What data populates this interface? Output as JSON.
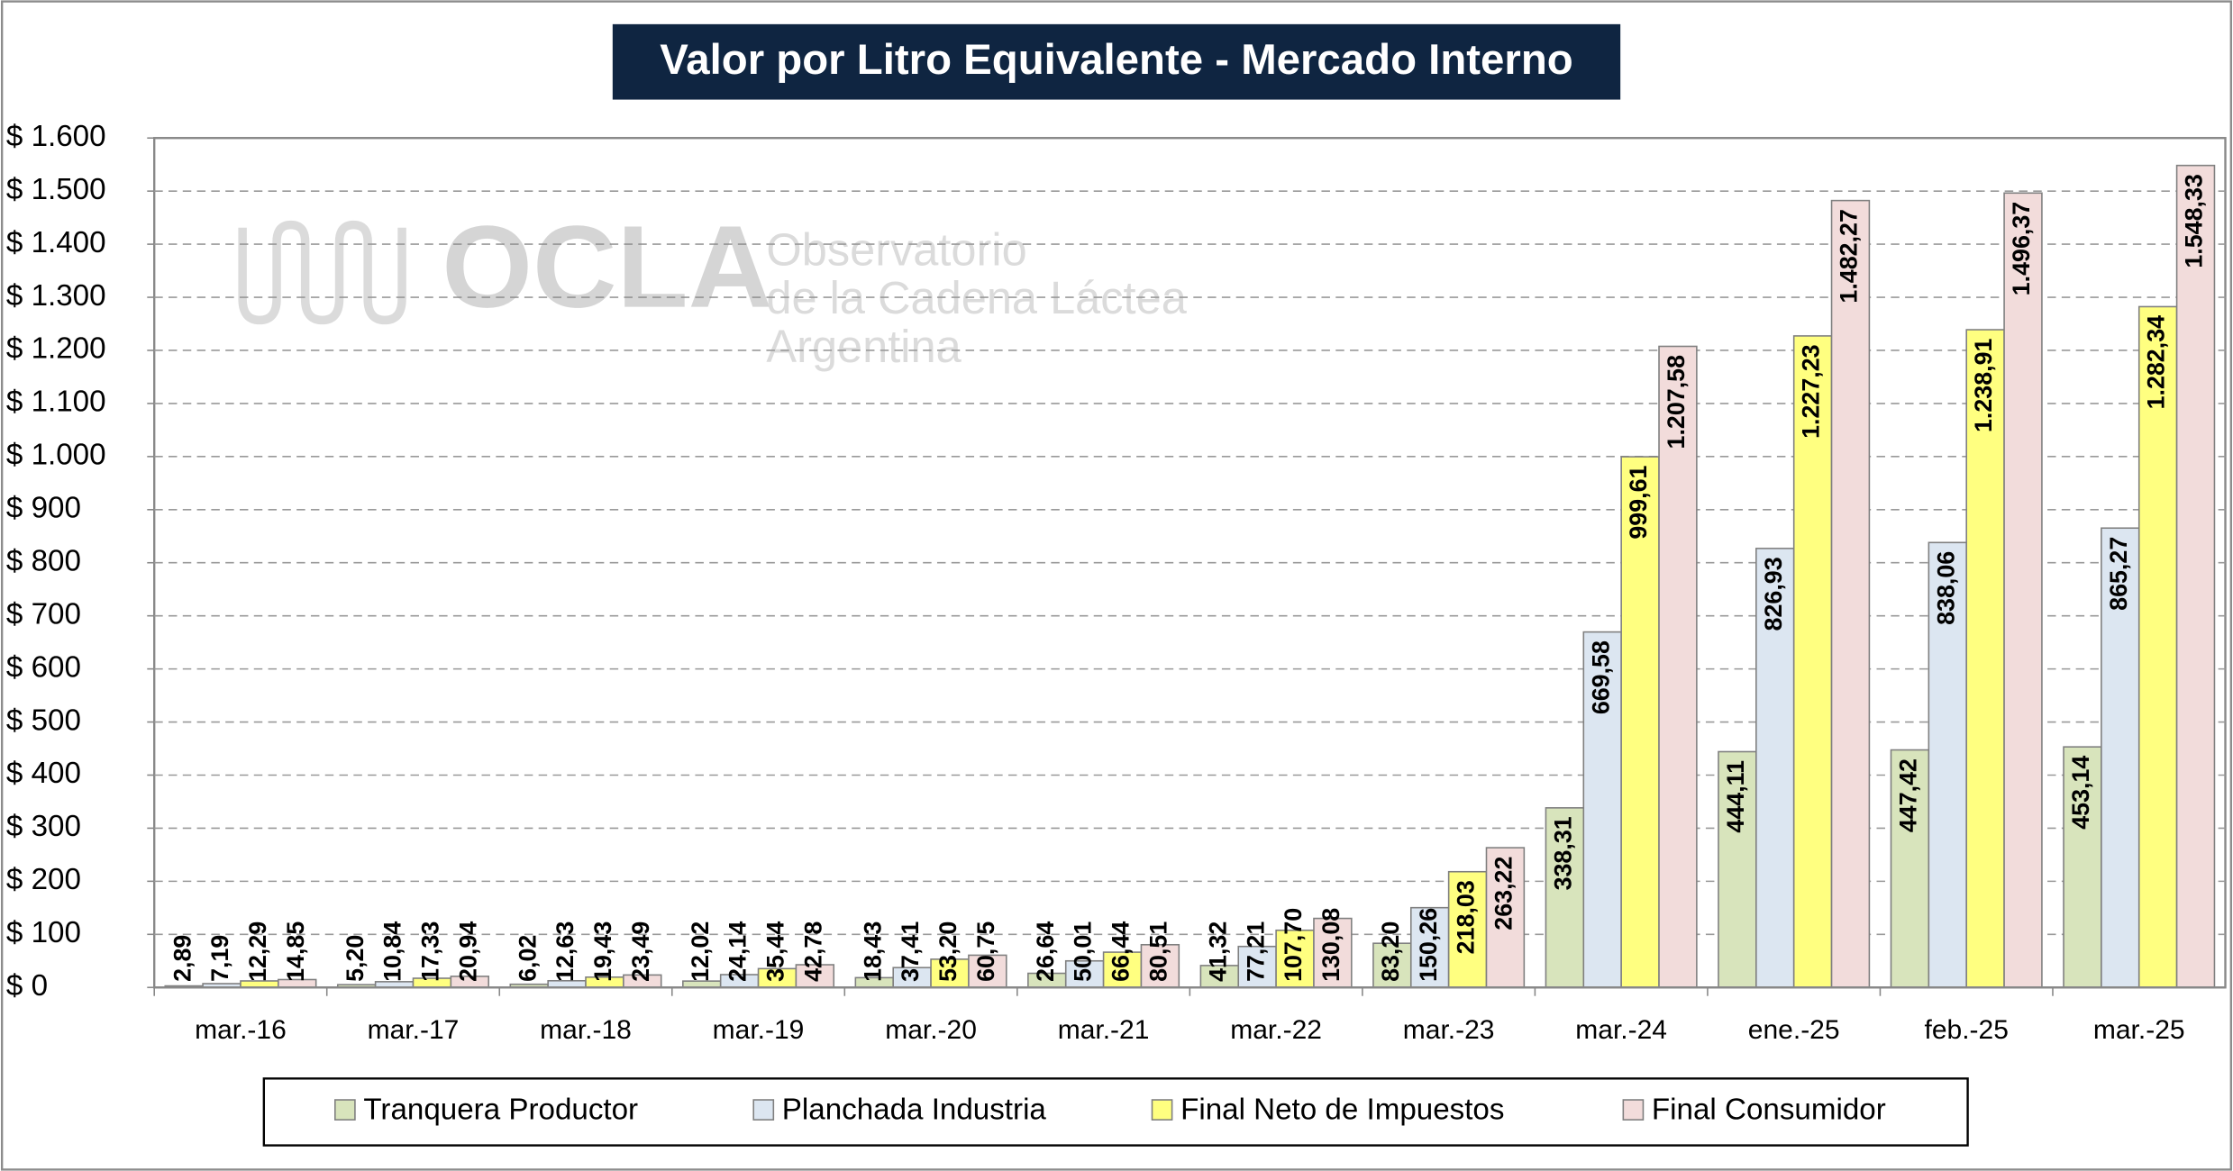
{
  "chart_data": {
    "type": "bar",
    "title": "Valor por Litro Equivalente - Mercado Interno",
    "watermark": {
      "logo": "OCLA",
      "lines": [
        "Observatorio",
        "de la Cadena Láctea",
        "Argentina"
      ]
    },
    "categories": [
      "mar.-16",
      "mar.-17",
      "mar.-18",
      "mar.-19",
      "mar.-20",
      "mar.-21",
      "mar.-22",
      "mar.-23",
      "mar.-24",
      "ene.-25",
      "feb.-25",
      "mar.-25"
    ],
    "series": [
      {
        "name": "Tranquera Productor",
        "color": "#d8e4bc",
        "values": [
          2.89,
          5.2,
          6.02,
          12.02,
          18.43,
          26.64,
          41.32,
          83.2,
          338.31,
          444.11,
          447.42,
          453.14
        ],
        "value_labels": [
          "2,89",
          "5,20",
          "6,02",
          "12,02",
          "18,43",
          "26,64",
          "41,32",
          "83,20",
          "338,31",
          "444,11",
          "447,42",
          "453,14"
        ]
      },
      {
        "name": "Planchada Industria",
        "color": "#dce6f1",
        "values": [
          7.19,
          10.84,
          12.63,
          24.14,
          37.41,
          50.01,
          77.21,
          150.26,
          669.58,
          826.93,
          838.06,
          865.27
        ],
        "value_labels": [
          "7,19",
          "10,84",
          "12,63",
          "24,14",
          "37,41",
          "50,01",
          "77,21",
          "150,26",
          "669,58",
          "826,93",
          "838,06",
          "865,27"
        ]
      },
      {
        "name": "Final Neto de Impuestos",
        "color": "#ffff80",
        "values": [
          12.29,
          17.33,
          19.43,
          35.44,
          53.2,
          66.44,
          107.7,
          218.03,
          999.61,
          1227.23,
          1238.91,
          1282.34
        ],
        "value_labels": [
          "12,29",
          "17,33",
          "19,43",
          "35,44",
          "53,20",
          "66,44",
          "107,70",
          "218,03",
          "999,61",
          "1.227,23",
          "1.238,91",
          "1.282,34"
        ]
      },
      {
        "name": "Final Consumidor",
        "color": "#f2dcdb",
        "values": [
          14.85,
          20.94,
          23.49,
          42.78,
          60.75,
          80.51,
          130.08,
          263.22,
          1207.58,
          1482.27,
          1496.37,
          1548.33
        ],
        "value_labels": [
          "14,85",
          "20,94",
          "23,49",
          "42,78",
          "60,75",
          "80,51",
          "130,08",
          "263,22",
          "1.207,58",
          "1.482,27",
          "1.496,37",
          "1.548,33"
        ]
      }
    ],
    "ylim": [
      0,
      1600
    ],
    "yticks": [
      {
        "value": 0,
        "label": "$ 0"
      },
      {
        "value": 100,
        "label": "$ 100"
      },
      {
        "value": 200,
        "label": "$ 200"
      },
      {
        "value": 300,
        "label": "$ 300"
      },
      {
        "value": 400,
        "label": "$ 400"
      },
      {
        "value": 500,
        "label": "$ 500"
      },
      {
        "value": 600,
        "label": "$ 600"
      },
      {
        "value": 700,
        "label": "$ 700"
      },
      {
        "value": 800,
        "label": "$ 800"
      },
      {
        "value": 900,
        "label": "$ 900"
      },
      {
        "value": 1000,
        "label": "$ 1.000"
      },
      {
        "value": 1100,
        "label": "$ 1.100"
      },
      {
        "value": 1200,
        "label": "$ 1.200"
      },
      {
        "value": 1300,
        "label": "$ 1.300"
      },
      {
        "value": 1400,
        "label": "$ 1.400"
      },
      {
        "value": 1500,
        "label": "$ 1.500"
      },
      {
        "value": 1600,
        "label": "$ 1.600"
      }
    ],
    "grid": true,
    "legend": "bottom"
  }
}
